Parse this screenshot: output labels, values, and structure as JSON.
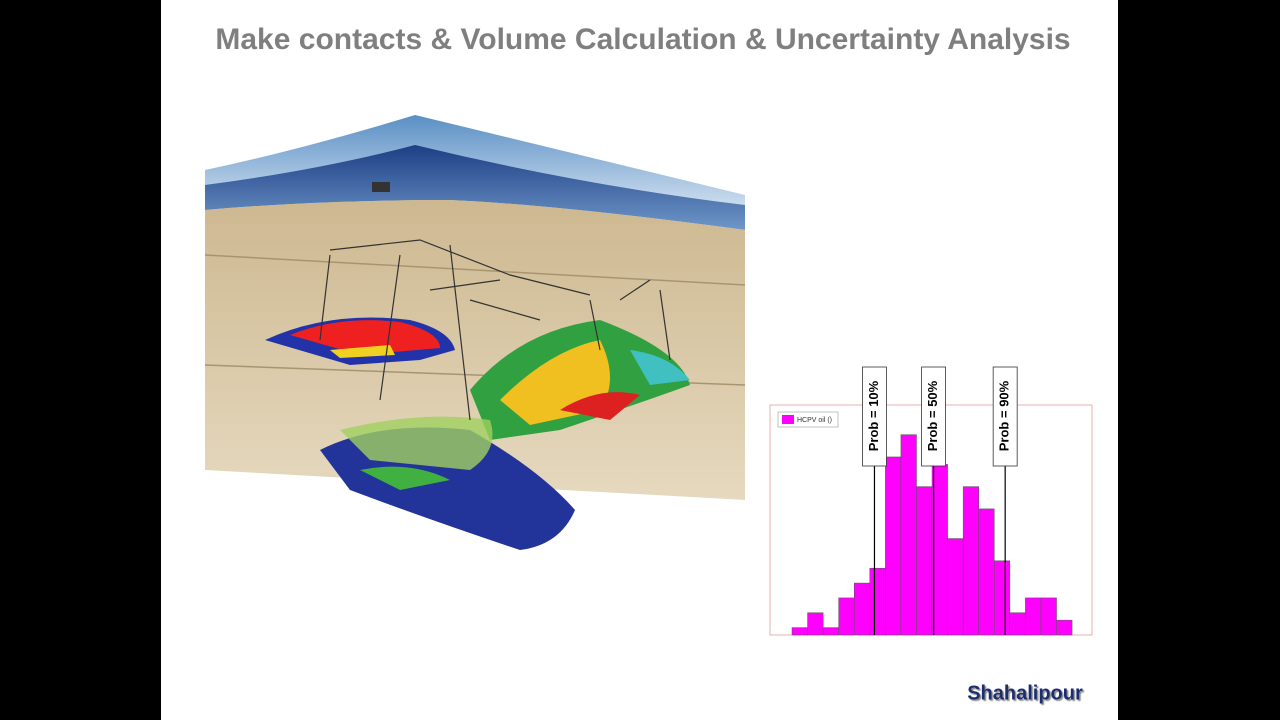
{
  "title": "Make contacts & Volume Calculation & Uncertainty Analysis",
  "chart_data": {
    "type": "histogram",
    "legend": "HCPV oil ()",
    "color": "#ff00ff",
    "counts": [
      1,
      3,
      1,
      5,
      7,
      9,
      24,
      27,
      20,
      23,
      13,
      20,
      17,
      10,
      3,
      5,
      5,
      2
    ],
    "ylim": [
      0,
      31
    ],
    "markers": [
      {
        "label": "Prob = 10%",
        "at": 5.3
      },
      {
        "label": "Prob = 50%",
        "at": 9.1
      },
      {
        "label": "Prob = 90%",
        "at": 13.7
      }
    ]
  },
  "author": "Shahalipour"
}
